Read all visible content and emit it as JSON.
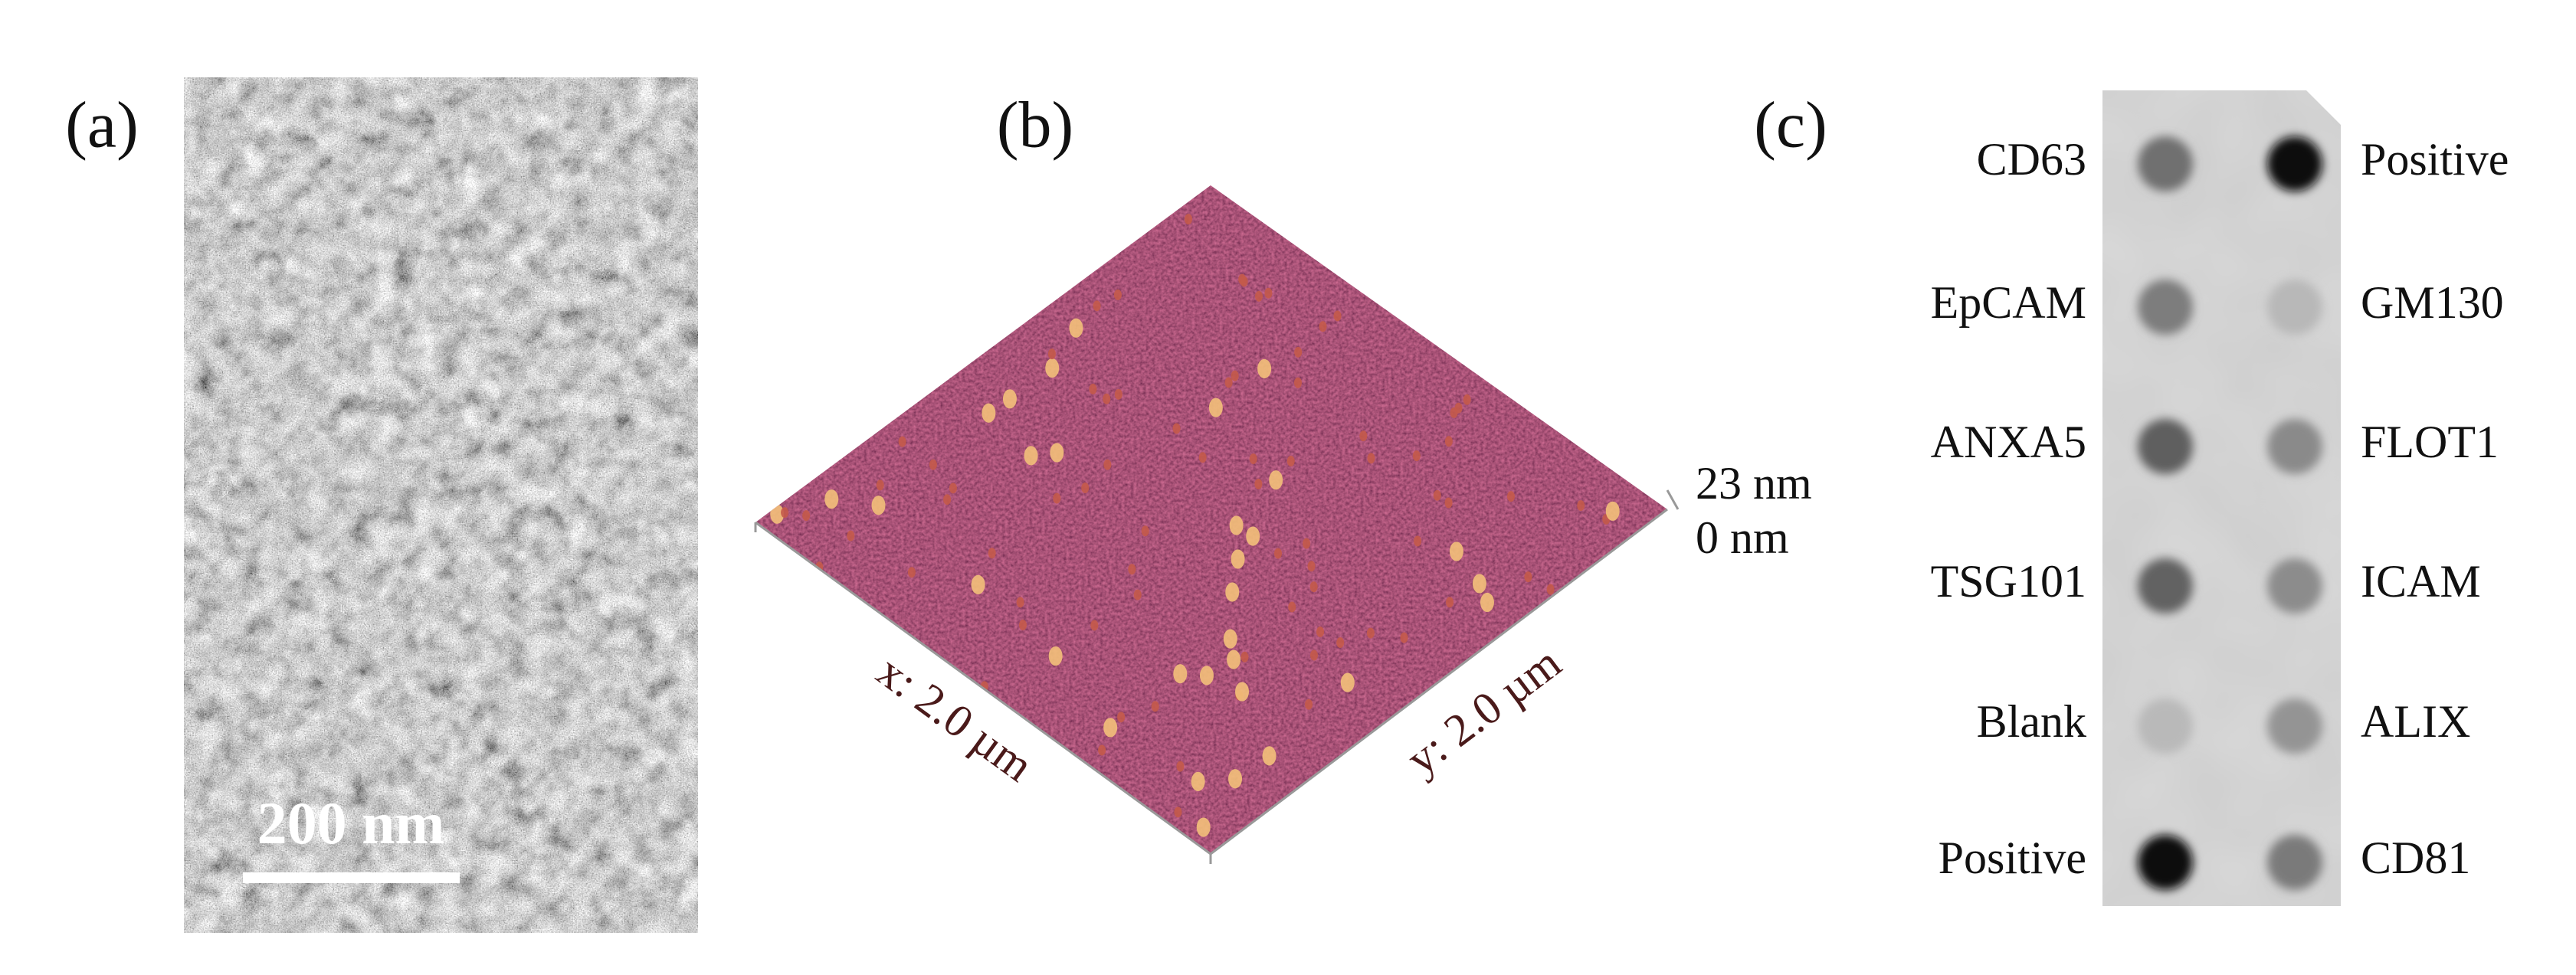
{
  "panels": [
    {
      "label": "(a)",
      "scale_bar": "200 nm"
    },
    {
      "label": "(b)",
      "x_axis": "x: 2.0 µm",
      "y_axis": "y: 2.0 µm",
      "z_max": "23 nm",
      "z_min": "0 nm"
    },
    {
      "label": "(c)",
      "left_labels": [
        "CD63",
        "EpCAM",
        "ANXA5",
        "TSG101",
        "Blank",
        "Positive"
      ],
      "right_labels": [
        "Positive",
        "GM130",
        "FLOT1",
        "ICAM",
        "ALIX",
        "CD81"
      ]
    }
  ]
}
